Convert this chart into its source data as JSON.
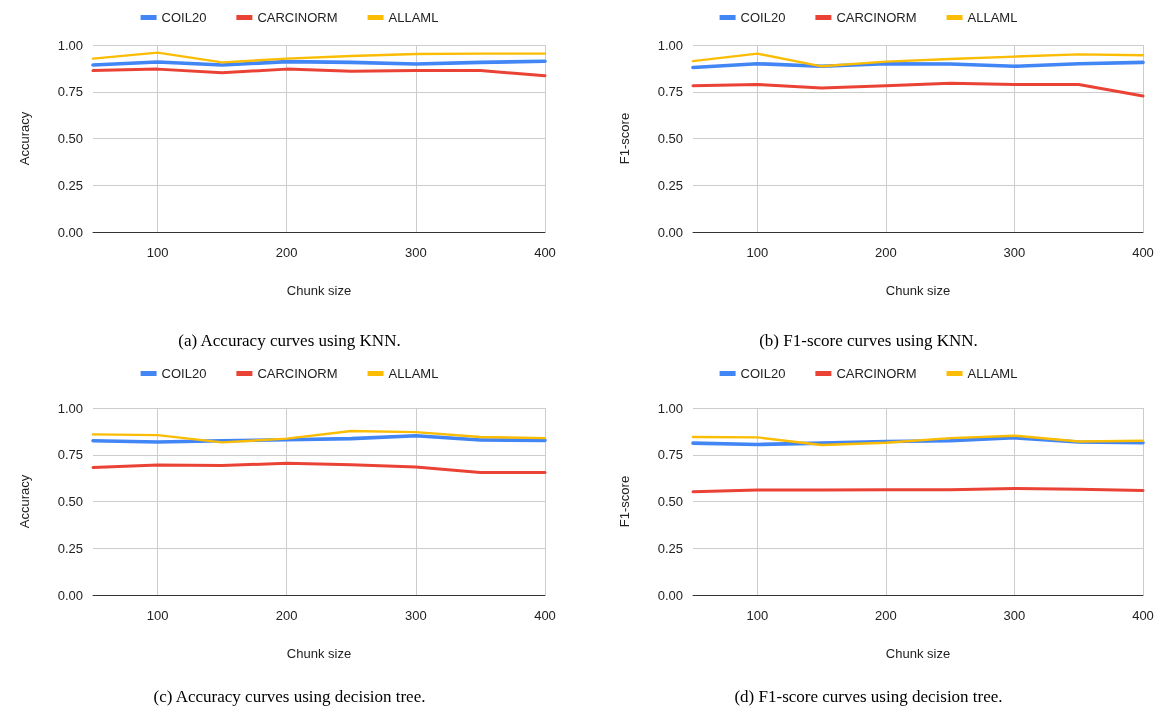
{
  "chart_data": [
    {
      "type": "line",
      "xlabel": "Chunk size",
      "ylabel": "Accuracy",
      "annotations": [
        "(a) Accuracy curves using KNN."
      ],
      "x": [
        50,
        100,
        150,
        200,
        250,
        300,
        350,
        400
      ],
      "series": [
        {
          "name": "COIL20",
          "color": "#4285f4",
          "values": [
            0.893,
            0.909,
            0.893,
            0.911,
            0.907,
            0.898,
            0.907,
            0.913
          ]
        },
        {
          "name": "CARCINORM",
          "color": "#ea4335",
          "values": [
            0.863,
            0.871,
            0.852,
            0.871,
            0.859,
            0.864,
            0.863,
            0.836
          ]
        },
        {
          "name": "ALLAML",
          "color": "#fbbc04",
          "values": [
            0.927,
            0.959,
            0.907,
            0.927,
            0.941,
            0.952,
            0.954,
            0.954
          ]
        }
      ],
      "xlim": [
        50,
        400
      ],
      "xticks": [
        100,
        200,
        300,
        400
      ],
      "ylim": [
        0,
        1
      ],
      "yticks": [
        {
          "value": 0,
          "label": "0.00"
        },
        {
          "value": 0.25,
          "label": "0.25"
        },
        {
          "value": 0.5,
          "label": "0.50"
        },
        {
          "value": 0.75,
          "label": "0.75"
        },
        {
          "value": 1,
          "label": "1.00"
        }
      ],
      "grid": true,
      "legend": "top",
      "marker": "none",
      "line_style": "solid"
    },
    {
      "type": "line",
      "xlabel": "Chunk size",
      "ylabel": "F1-score",
      "annotations": [
        "(b) F1-score curves using KNN."
      ],
      "x": [
        50,
        100,
        150,
        200,
        250,
        300,
        350,
        400
      ],
      "series": [
        {
          "name": "COIL20",
          "color": "#4285f4",
          "values": [
            0.88,
            0.9,
            0.886,
            0.9,
            0.898,
            0.886,
            0.9,
            0.907
          ]
        },
        {
          "name": "CARCINORM",
          "color": "#ea4335",
          "values": [
            0.782,
            0.789,
            0.77,
            0.782,
            0.796,
            0.789,
            0.789,
            0.727
          ]
        },
        {
          "name": "ALLAML",
          "color": "#fbbc04",
          "values": [
            0.914,
            0.954,
            0.886,
            0.911,
            0.925,
            0.938,
            0.95,
            0.945
          ]
        }
      ],
      "xlim": [
        50,
        400
      ],
      "xticks": [
        100,
        200,
        300,
        400
      ],
      "ylim": [
        0,
        1
      ],
      "yticks": [
        {
          "value": 0,
          "label": "0.00"
        },
        {
          "value": 0.25,
          "label": "0.25"
        },
        {
          "value": 0.5,
          "label": "0.50"
        },
        {
          "value": 0.75,
          "label": "0.75"
        },
        {
          "value": 1,
          "label": "1.00"
        }
      ],
      "grid": true,
      "legend": "top",
      "marker": "none",
      "line_style": "solid"
    },
    {
      "type": "line",
      "xlabel": "Chunk size",
      "ylabel": "Accuracy",
      "annotations": [
        "(c) Accuracy curves using decision tree."
      ],
      "x": [
        50,
        100,
        150,
        200,
        250,
        300,
        350,
        400
      ],
      "series": [
        {
          "name": "COIL20",
          "color": "#4285f4",
          "values": [
            0.825,
            0.818,
            0.825,
            0.83,
            0.836,
            0.852,
            0.829,
            0.827
          ]
        },
        {
          "name": "CARCINORM",
          "color": "#ea4335",
          "values": [
            0.682,
            0.695,
            0.693,
            0.704,
            0.696,
            0.684,
            0.655,
            0.655
          ]
        },
        {
          "name": "ALLAML",
          "color": "#fbbc04",
          "values": [
            0.859,
            0.855,
            0.816,
            0.836,
            0.877,
            0.871,
            0.845,
            0.839
          ]
        }
      ],
      "xlim": [
        50,
        400
      ],
      "xticks": [
        100,
        200,
        300,
        400
      ],
      "ylim": [
        0,
        1
      ],
      "yticks": [
        {
          "value": 0,
          "label": "0.00"
        },
        {
          "value": 0.25,
          "label": "0.25"
        },
        {
          "value": 0.5,
          "label": "0.50"
        },
        {
          "value": 0.75,
          "label": "0.75"
        },
        {
          "value": 1,
          "label": "1.00"
        }
      ],
      "grid": true,
      "legend": "top",
      "marker": "none",
      "line_style": "solid"
    },
    {
      "type": "line",
      "xlabel": "Chunk size",
      "ylabel": "F1-score",
      "annotations": [
        "(d) F1-score curves using decision tree."
      ],
      "x": [
        50,
        100,
        150,
        200,
        250,
        300,
        350,
        400
      ],
      "series": [
        {
          "name": "COIL20",
          "color": "#4285f4",
          "values": [
            0.812,
            0.805,
            0.812,
            0.821,
            0.825,
            0.841,
            0.818,
            0.814
          ]
        },
        {
          "name": "CARCINORM",
          "color": "#ea4335",
          "values": [
            0.552,
            0.561,
            0.561,
            0.563,
            0.563,
            0.57,
            0.566,
            0.559
          ]
        },
        {
          "name": "ALLAML",
          "color": "#fbbc04",
          "values": [
            0.845,
            0.843,
            0.802,
            0.814,
            0.839,
            0.852,
            0.821,
            0.825
          ]
        }
      ],
      "xlim": [
        50,
        400
      ],
      "xticks": [
        100,
        200,
        300,
        400
      ],
      "ylim": [
        0,
        1
      ],
      "yticks": [
        {
          "value": 0,
          "label": "0.00"
        },
        {
          "value": 0.25,
          "label": "0.25"
        },
        {
          "value": 0.5,
          "label": "0.50"
        },
        {
          "value": 0.75,
          "label": "0.75"
        },
        {
          "value": 1,
          "label": "1.00"
        }
      ],
      "grid": true,
      "legend": "top",
      "marker": "none",
      "line_style": "solid"
    }
  ]
}
